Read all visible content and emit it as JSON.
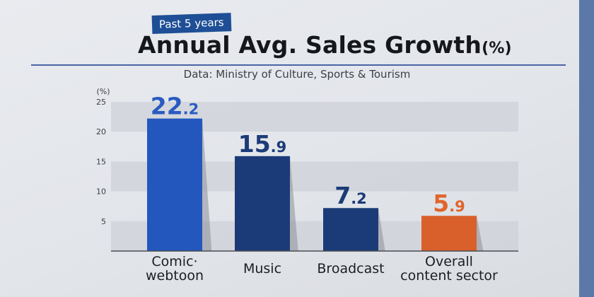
{
  "badge": "Past 5 years",
  "title": "Annual Avg. Sales Growth",
  "title_unit": "(%)",
  "source": "Data: Ministry of Culture, Sports & Tourism",
  "colors": {
    "comic": "#2357be",
    "navy": "#1b3b78",
    "overall": "#d9602b",
    "label_comic": "#2a5bc1",
    "label_navy": "#1b3b78",
    "label_overall": "#e0652c",
    "band": "#cdd1d8",
    "side_panel": "#5b78a8"
  },
  "chart_data": {
    "type": "bar",
    "title": "Annual Avg. Sales Growth (%)",
    "subtitle": "Past 5 years",
    "xlabel": "",
    "ylabel": "(%)",
    "ylim": [
      0,
      25
    ],
    "yticks": [
      5,
      10,
      15,
      20,
      25
    ],
    "grid": "alternating horizontal bands",
    "categories": [
      "Comic·\nwebtoon",
      "Music",
      "Broadcast",
      "Overall\ncontent sector"
    ],
    "values": [
      22.2,
      15.9,
      7.2,
      5.9
    ],
    "value_labels": [
      {
        "int": "22",
        "dec": ".2"
      },
      {
        "int": "15",
        "dec": ".9"
      },
      {
        "int": "7",
        "dec": ".2"
      },
      {
        "int": "5",
        "dec": ".9"
      }
    ],
    "bar_colors": [
      "comic",
      "navy",
      "navy",
      "overall"
    ],
    "label_colors": [
      "label_comic",
      "label_navy",
      "label_navy",
      "label_overall"
    ]
  }
}
